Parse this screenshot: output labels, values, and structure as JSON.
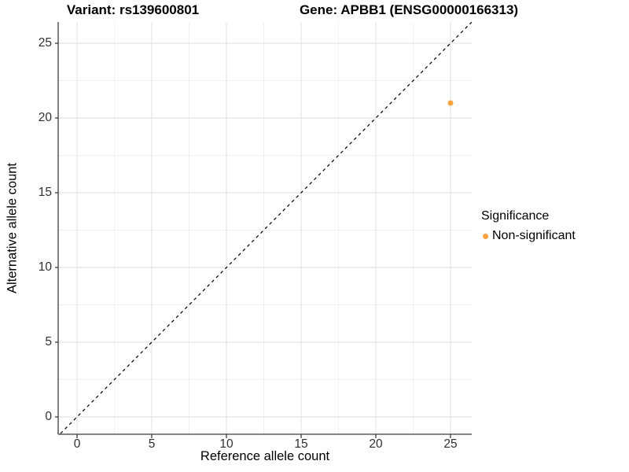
{
  "titles": {
    "variant_title": "Variant: rs139600801",
    "gene_title": "Gene: APBB1 (ENSG00000166313)"
  },
  "axes": {
    "x_label": "Reference allele count",
    "y_label": "Alternative allele count"
  },
  "legend": {
    "title": "Significance",
    "items": [
      {
        "label": "Non-significant",
        "color": "#F9A242"
      }
    ]
  },
  "chart_data": {
    "type": "scatter",
    "title": "Variant: rs139600801 | Gene: APBB1 (ENSG00000166313)",
    "xlabel": "Reference allele count",
    "ylabel": "Alternative allele count",
    "x_ticks": [
      0,
      5,
      10,
      15,
      20,
      25
    ],
    "y_ticks": [
      0,
      5,
      10,
      15,
      20,
      25
    ],
    "x_minor_ticks": [
      2.5,
      7.5,
      12.5,
      17.5,
      22.5
    ],
    "y_minor_ticks": [
      2.5,
      7.5,
      12.5,
      17.5,
      22.5
    ],
    "xlim": [
      -1.3,
      26.5
    ],
    "ylim": [
      -1.2,
      26.5
    ],
    "grid": true,
    "legend_position": "right",
    "series": [
      {
        "name": "Non-significant",
        "color": "#F9A242",
        "points": [
          {
            "x": 25,
            "y": 21
          }
        ]
      }
    ],
    "reference_line": {
      "kind": "identity y=x",
      "style": "dashed",
      "color": "#000000"
    },
    "colors": {
      "grid_major": "#E4E4E4",
      "grid_minor": "#F0F0F0",
      "axis": "#3C3C3C",
      "tick_text": "#303030"
    }
  }
}
